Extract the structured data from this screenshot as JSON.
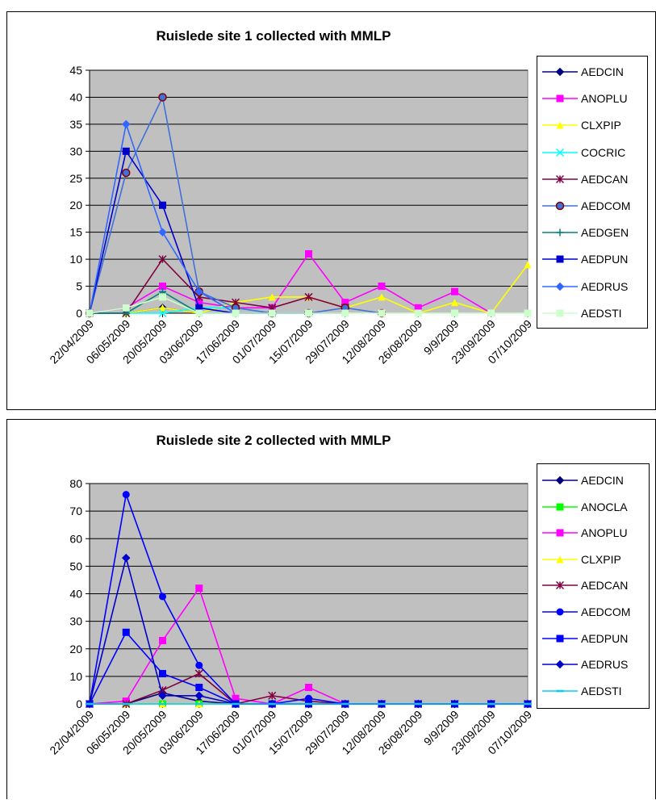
{
  "chart_data": [
    {
      "type": "line",
      "title": "Ruislede site 1 collected with MMLP",
      "xlabel": "",
      "ylabel": "",
      "ylim": [
        0,
        45
      ],
      "yticks": [
        0,
        5,
        10,
        15,
        20,
        25,
        30,
        35,
        40,
        45
      ],
      "grid": true,
      "legend_position": "right",
      "plot_background": "#c0c0c0",
      "categories": [
        "22/04/2009",
        "06/05/2009",
        "20/05/2009",
        "03/06/2009",
        "17/06/2009",
        "01/07/2009",
        "15/07/2009",
        "29/07/2009",
        "12/08/2009",
        "26/08/2009",
        "9/9/2009",
        "23/09/2009",
        "07/10/2009"
      ],
      "series": [
        {
          "name": "AEDCIN",
          "color": "#000080",
          "marker": "diamond",
          "values": [
            0,
            0,
            1,
            0,
            null,
            null,
            null,
            null,
            null,
            null,
            null,
            null,
            null
          ]
        },
        {
          "name": "ANOPLU",
          "color": "#ff00ff",
          "marker": "square",
          "values": [
            0,
            1,
            5,
            2,
            1,
            1,
            11,
            2,
            5,
            1,
            4,
            0,
            null
          ]
        },
        {
          "name": "CLXPIP",
          "color": "#ffff00",
          "marker": "triangle",
          "values": [
            0,
            0,
            1,
            0,
            2,
            3,
            3,
            1,
            3,
            0,
            2,
            0,
            9
          ]
        },
        {
          "name": "COCRIC",
          "color": "#00ffff",
          "marker": "x",
          "values": [
            0,
            0,
            0,
            1,
            1,
            0,
            0,
            null,
            null,
            null,
            null,
            null,
            null
          ]
        },
        {
          "name": "AEDCAN",
          "color": "#800040",
          "marker": "star",
          "values": [
            0,
            0,
            10,
            3,
            2,
            1,
            3,
            1,
            null,
            null,
            null,
            null,
            null
          ]
        },
        {
          "name": "AEDCOM",
          "color": "#4070d8",
          "marker": "circle-red",
          "values": [
            0,
            26,
            40,
            4,
            1,
            0,
            0,
            1,
            0,
            null,
            null,
            null,
            null
          ]
        },
        {
          "name": "AEDGEN",
          "color": "#008080",
          "marker": "plus",
          "values": [
            0,
            0,
            4,
            0,
            0,
            0,
            0,
            null,
            null,
            null,
            null,
            null,
            null
          ]
        },
        {
          "name": "AEDPUN",
          "color": "#0000cd",
          "marker": "square",
          "values": [
            0,
            30,
            20,
            1,
            0,
            0,
            0,
            null,
            null,
            null,
            null,
            null,
            null
          ]
        },
        {
          "name": "AEDRUS",
          "color": "#3366ff",
          "marker": "diamond",
          "values": [
            0,
            35,
            15,
            4,
            0,
            0,
            0,
            0,
            null,
            null,
            null,
            null,
            null
          ]
        },
        {
          "name": "AEDSTI",
          "color": "#ccffcc",
          "marker": "square",
          "values": [
            0,
            1,
            3,
            0,
            0,
            0,
            0,
            0,
            0,
            0,
            0,
            0,
            0
          ]
        }
      ]
    },
    {
      "type": "line",
      "title": "Ruislede site 2 collected with MMLP",
      "xlabel": "",
      "ylabel": "",
      "ylim": [
        0,
        80
      ],
      "yticks": [
        0,
        10,
        20,
        30,
        40,
        50,
        60,
        70,
        80
      ],
      "grid": true,
      "legend_position": "right",
      "plot_background": "#c0c0c0",
      "categories": [
        "22/04/2009",
        "06/05/2009",
        "20/05/2009",
        "03/06/2009",
        "17/06/2009",
        "01/07/2009",
        "15/07/2009",
        "29/07/2009",
        "12/08/2009",
        "26/08/2009",
        "9/9/2009",
        "23/09/2009",
        "07/10/2009"
      ],
      "series": [
        {
          "name": "AEDCIN",
          "color": "#000080",
          "marker": "diamond",
          "values": [
            0,
            0,
            4,
            1,
            0,
            0,
            0,
            0,
            0,
            0,
            0,
            0,
            0
          ]
        },
        {
          "name": "ANOCLA",
          "color": "#00ff00",
          "marker": "square",
          "values": [
            0,
            0,
            0,
            0,
            0,
            0,
            0,
            0,
            0,
            0,
            0,
            0,
            0
          ]
        },
        {
          "name": "ANOPLU",
          "color": "#ff00ff",
          "marker": "square",
          "values": [
            0,
            1,
            23,
            42,
            2,
            0,
            6,
            0,
            0,
            0,
            0,
            0,
            0
          ]
        },
        {
          "name": "CLXPIP",
          "color": "#ffff00",
          "marker": "triangle",
          "values": [
            0,
            0,
            0,
            0,
            0,
            0,
            0,
            0,
            0,
            0,
            0,
            0,
            0
          ]
        },
        {
          "name": "AEDCAN",
          "color": "#800040",
          "marker": "star",
          "values": [
            0,
            0,
            5,
            11,
            0,
            3,
            1,
            0,
            0,
            0,
            0,
            0,
            0
          ]
        },
        {
          "name": "AEDCOM",
          "color": "#0000ff",
          "marker": "circle",
          "values": [
            0,
            76,
            39,
            14,
            0,
            0,
            2,
            0,
            0,
            0,
            0,
            0,
            0
          ]
        },
        {
          "name": "AEDPUN",
          "color": "#0000ff",
          "marker": "square",
          "values": [
            0,
            26,
            11,
            6,
            0,
            0,
            0,
            0,
            0,
            0,
            0,
            0,
            0
          ]
        },
        {
          "name": "AEDRUS",
          "color": "#0000cd",
          "marker": "diamond",
          "values": [
            0,
            53,
            3,
            3,
            0,
            0,
            0,
            0,
            0,
            0,
            0,
            0,
            0
          ]
        },
        {
          "name": "AEDSTI",
          "color": "#00ccff",
          "marker": "dash",
          "values": [
            0,
            0,
            0,
            0,
            0,
            0,
            0,
            0,
            0,
            0,
            0,
            0,
            0
          ]
        }
      ]
    }
  ]
}
